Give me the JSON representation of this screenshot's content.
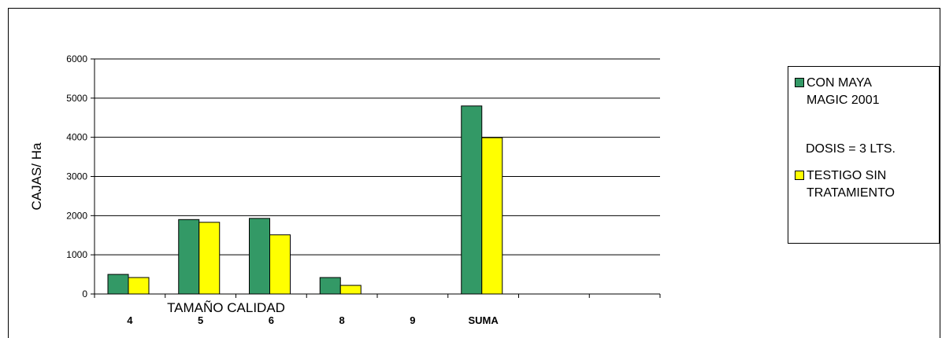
{
  "chart_data": {
    "type": "bar",
    "title": "",
    "xlabel": "TAMAÑO CALIDAD",
    "ylabel": "CAJAS/ Ha",
    "categories": [
      "4",
      "5",
      "6",
      "8",
      "9",
      "SUMA",
      "",
      ""
    ],
    "series": [
      {
        "name": "CON MAYA\nMAGIC 2001",
        "color": "#339966",
        "values": [
          500,
          1900,
          1930,
          420,
          0,
          4800,
          null,
          null
        ]
      },
      {
        "name": "TESTIGO SIN\nTRATAMIENTO",
        "color": "#ffff00",
        "values": [
          420,
          1830,
          1510,
          220,
          0,
          3990,
          null,
          null
        ]
      }
    ],
    "ylim": [
      0,
      6000
    ],
    "yticks": [
      0,
      1000,
      2000,
      3000,
      4000,
      5000,
      6000
    ],
    "grid": true,
    "legend_position": "right",
    "legend_note": "DOSIS = 3 LTS."
  }
}
